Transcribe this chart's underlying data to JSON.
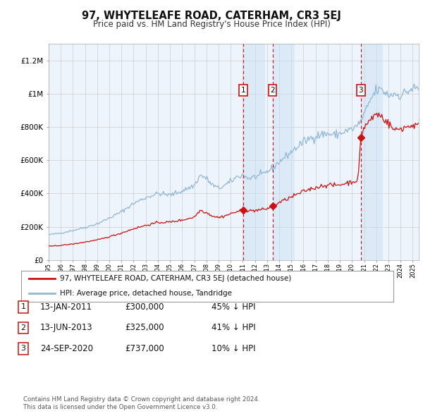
{
  "title": "97, WHYTELEAFE ROAD, CATERHAM, CR3 5EJ",
  "subtitle": "Price paid vs. HM Land Registry's House Price Index (HPI)",
  "hpi_color": "#90b8d8",
  "price_color": "#cc1111",
  "background_color": "#ffffff",
  "plot_bg_color": "#eef4fb",
  "ylim": [
    0,
    1300000
  ],
  "yticks": [
    0,
    200000,
    400000,
    600000,
    800000,
    1000000,
    1200000
  ],
  "ytick_labels": [
    "£0",
    "£200K",
    "£400K",
    "£600K",
    "£800K",
    "£1M",
    "£1.2M"
  ],
  "sale_dates_num": [
    2011.04,
    2013.45,
    2020.73
  ],
  "sale_prices": [
    300000,
    325000,
    737000
  ],
  "sale_labels": [
    "1",
    "2",
    "3"
  ],
  "legend_line1": "97, WHYTELEAFE ROAD, CATERHAM, CR3 5EJ (detached house)",
  "legend_line2": "HPI: Average price, detached house, Tandridge",
  "table_rows": [
    [
      "1",
      "13-JAN-2011",
      "£300,000",
      "45% ↓ HPI"
    ],
    [
      "2",
      "13-JUN-2013",
      "£325,000",
      "41% ↓ HPI"
    ],
    [
      "3",
      "24-SEP-2020",
      "£737,000",
      "10% ↓ HPI"
    ]
  ],
  "footer": "Contains HM Land Registry data © Crown copyright and database right 2024.\nThis data is licensed under the Open Government Licence v3.0.",
  "xmin": 1995,
  "xmax": 2025.5
}
